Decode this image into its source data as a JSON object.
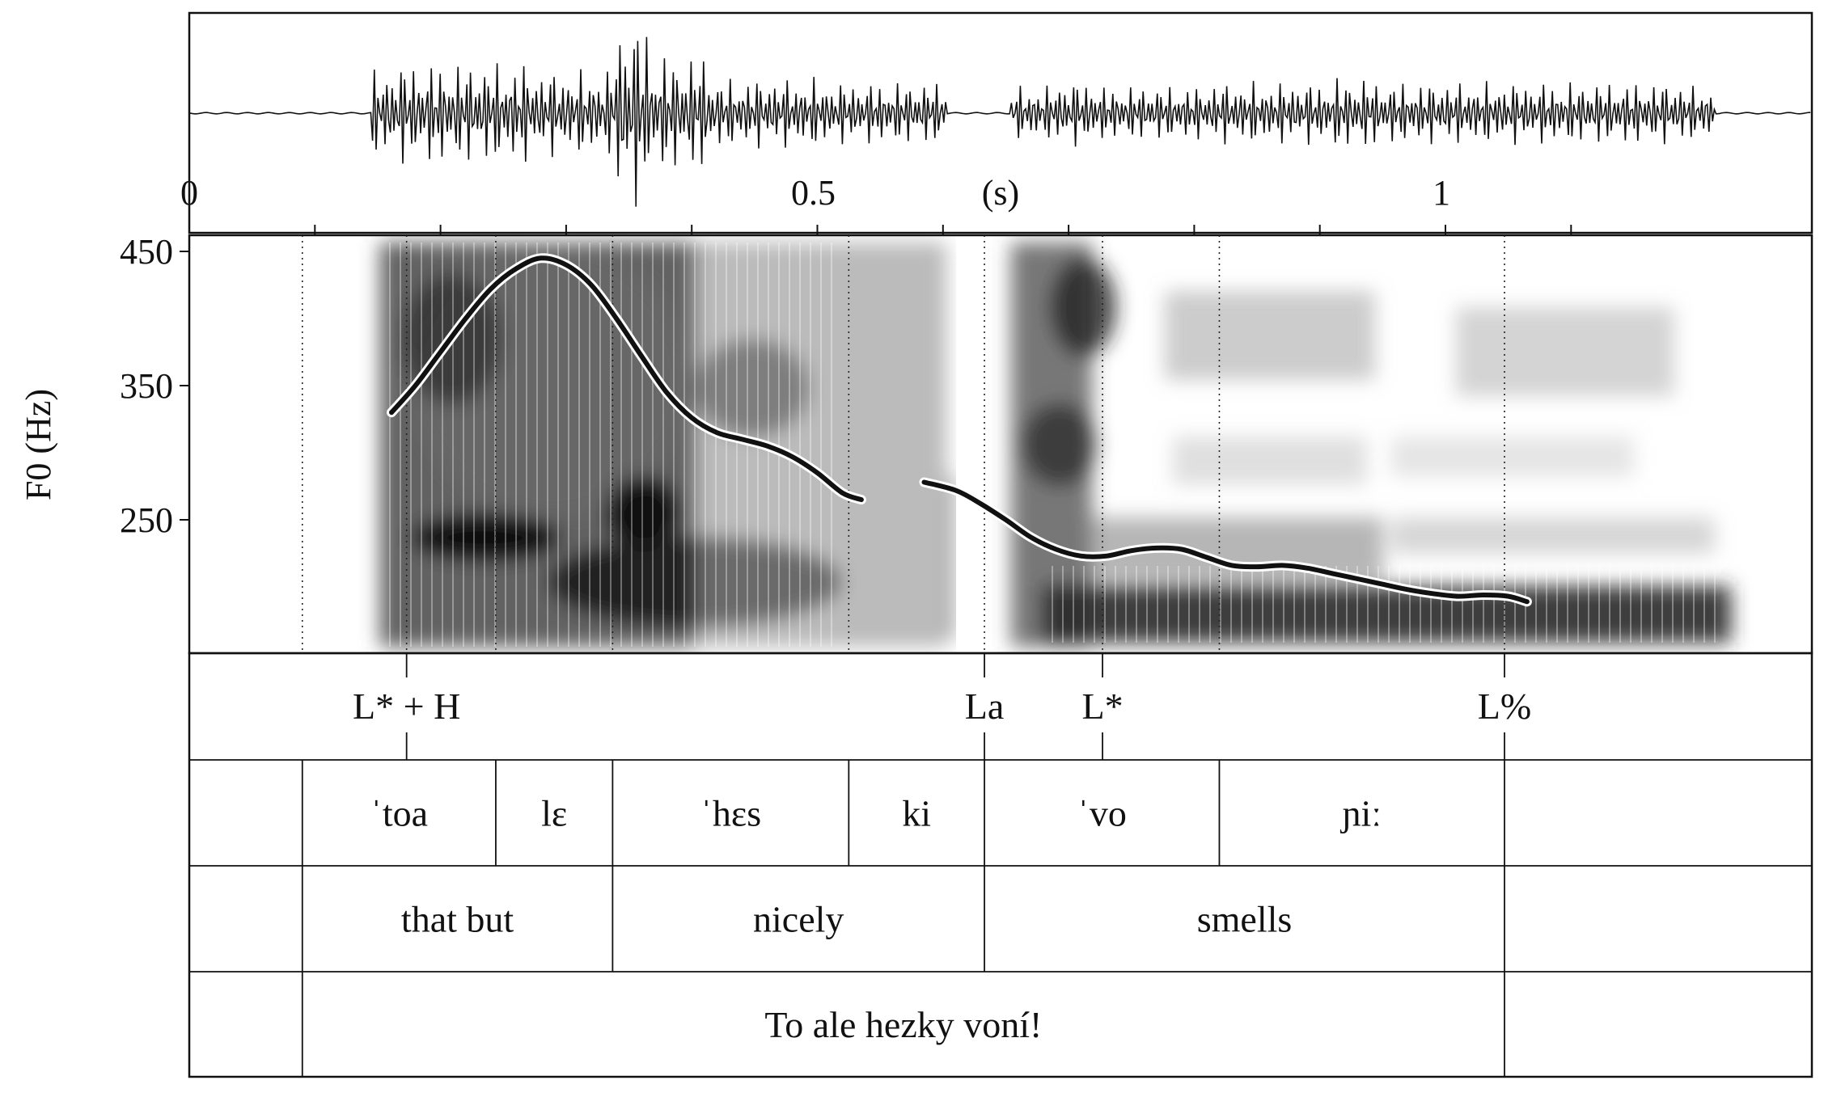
{
  "time_axis": {
    "unit_label": "(s)",
    "tick_labels": [
      {
        "t": 0,
        "label": "0"
      },
      {
        "t": 0.5,
        "label": "0.5"
      },
      {
        "t": 1.0,
        "label": "1"
      }
    ],
    "minor_ticks": [
      0.1,
      0.2,
      0.3,
      0.4,
      0.5,
      0.6,
      0.7,
      0.8,
      0.9,
      1.0,
      1.1
    ],
    "range": [
      0,
      1.11
    ]
  },
  "f0_axis": {
    "title": "F0 (Hz)",
    "ticks": [
      {
        "hz": 450,
        "label": "450"
      },
      {
        "hz": 350,
        "label": "350"
      },
      {
        "hz": 250,
        "label": "250"
      }
    ],
    "range": [
      155,
      465
    ]
  },
  "pitch_contour": [
    {
      "points": [
        [
          0.161,
          330
        ],
        [
          0.18,
          350
        ],
        [
          0.2,
          375
        ],
        [
          0.22,
          400
        ],
        [
          0.24,
          422
        ],
        [
          0.26,
          437
        ],
        [
          0.28,
          445
        ],
        [
          0.3,
          440
        ],
        [
          0.32,
          425
        ],
        [
          0.34,
          400
        ],
        [
          0.36,
          372
        ],
        [
          0.38,
          345
        ],
        [
          0.4,
          326
        ],
        [
          0.42,
          315
        ],
        [
          0.44,
          310
        ],
        [
          0.46,
          305
        ],
        [
          0.48,
          297
        ],
        [
          0.5,
          285
        ],
        [
          0.52,
          270
        ],
        [
          0.535,
          265
        ]
      ]
    },
    {
      "points": [
        [
          0.585,
          278
        ],
        [
          0.61,
          272
        ],
        [
          0.63,
          262
        ],
        [
          0.65,
          250
        ],
        [
          0.67,
          237
        ],
        [
          0.69,
          228
        ],
        [
          0.71,
          223
        ],
        [
          0.73,
          223
        ],
        [
          0.75,
          227
        ],
        [
          0.77,
          229
        ],
        [
          0.79,
          228
        ],
        [
          0.81,
          222
        ],
        [
          0.83,
          216
        ],
        [
          0.85,
          215
        ],
        [
          0.87,
          216
        ],
        [
          0.89,
          214
        ],
        [
          0.91,
          210
        ],
        [
          0.93,
          206
        ],
        [
          0.95,
          202
        ],
        [
          0.97,
          198
        ],
        [
          0.99,
          195
        ],
        [
          1.01,
          193
        ],
        [
          1.03,
          194
        ],
        [
          1.05,
          193
        ],
        [
          1.065,
          189
        ]
      ]
    }
  ],
  "boundaries": [
    0.09,
    0.173,
    0.244,
    0.337,
    0.525,
    0.633,
    0.727,
    0.82,
    1.047
  ],
  "tones_tier": {
    "points": [
      {
        "t": 0.173,
        "label": "L* + H"
      },
      {
        "t": 0.633,
        "label": "La"
      },
      {
        "t": 0.727,
        "label": "L*"
      },
      {
        "t": 1.047,
        "label": "L%"
      }
    ]
  },
  "syllable_tier": {
    "intervals": [
      {
        "start": 0.09,
        "end": 0.244,
        "label": "ˈtoa"
      },
      {
        "start": 0.244,
        "end": 0.337,
        "label": "lɛ"
      },
      {
        "start": 0.337,
        "end": 0.525,
        "label": "ˈhɛs"
      },
      {
        "start": 0.525,
        "end": 0.633,
        "label": "ki"
      },
      {
        "start": 0.633,
        "end": 0.82,
        "label": "ˈvo"
      },
      {
        "start": 0.82,
        "end": 1.047,
        "label": "ɲiː"
      }
    ]
  },
  "gloss_tier": {
    "intervals": [
      {
        "start": 0.09,
        "end": 0.337,
        "label": "that but"
      },
      {
        "start": 0.337,
        "end": 0.633,
        "label": "nicely"
      },
      {
        "start": 0.633,
        "end": 1.047,
        "label": "smells"
      }
    ]
  },
  "sentence_tier": {
    "intervals": [
      {
        "start": 0.09,
        "end": 1.047,
        "label": "To ale hezky voní!"
      }
    ]
  },
  "colors": {
    "ink": "#111111",
    "contour_halo": "#ffffff",
    "spectrogram_dark": "#1c1c1c"
  }
}
